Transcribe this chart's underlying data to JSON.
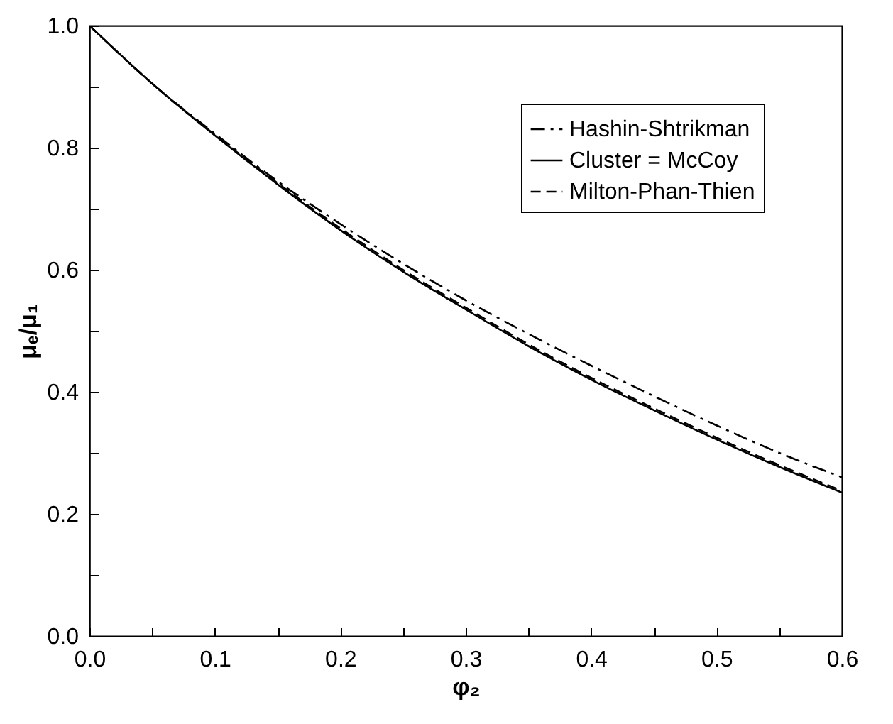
{
  "chart_data": {
    "type": "line",
    "xlabel": "φ₂",
    "ylabel": "μₑ/μ₁",
    "x": [
      0,
      0.05,
      0.1,
      0.15,
      0.2,
      0.25,
      0.3,
      0.35,
      0.4,
      0.45,
      0.5,
      0.55,
      0.6
    ],
    "series": [
      {
        "name": "Hashin-Shtrikman",
        "color": "#000000",
        "line_style": "dashdot",
        "values": [
          1.0,
          0.905,
          0.823,
          0.745,
          0.675,
          0.61,
          0.55,
          0.495,
          0.443,
          0.393,
          0.345,
          0.3,
          0.26
        ]
      },
      {
        "name": "Cluster = McCoy",
        "color": "#000000",
        "line_style": "solid",
        "values": [
          1.0,
          0.905,
          0.82,
          0.74,
          0.665,
          0.597,
          0.535,
          0.475,
          0.42,
          0.37,
          0.322,
          0.277,
          0.235
        ]
      },
      {
        "name": "Milton-Phan-Thien",
        "color": "#000000",
        "line_style": "dashed",
        "values": [
          1.0,
          0.905,
          0.821,
          0.742,
          0.668,
          0.6,
          0.538,
          0.478,
          0.423,
          0.373,
          0.325,
          0.28,
          0.238
        ]
      }
    ],
    "xlim": [
      0,
      0.6
    ],
    "ylim": [
      0,
      1.0
    ],
    "xticks": [
      {
        "value": 0,
        "label": "0.0"
      },
      {
        "value": 0.05,
        "label": null
      },
      0.1,
      {
        "value": 0.15,
        "label": null
      },
      0.2,
      {
        "value": 0.25,
        "label": null
      },
      0.3,
      {
        "value": 0.35,
        "label": null
      },
      0.4,
      {
        "value": 0.45,
        "label": null
      },
      0.5,
      {
        "value": 0.55,
        "label": null
      },
      0.6
    ],
    "yticks": [
      {
        "value": 0,
        "label": "0.0"
      },
      {
        "value": 0.1,
        "label": null
      },
      0.2,
      {
        "value": 0.3,
        "label": null
      },
      0.4,
      {
        "value": 0.5,
        "label": null
      },
      0.6,
      {
        "value": 0.7,
        "label": null
      },
      0.8,
      {
        "value": 0.9,
        "label": null
      },
      {
        "value": 1.0,
        "label": "1.0"
      }
    ],
    "grid": false,
    "legend": "top right"
  }
}
